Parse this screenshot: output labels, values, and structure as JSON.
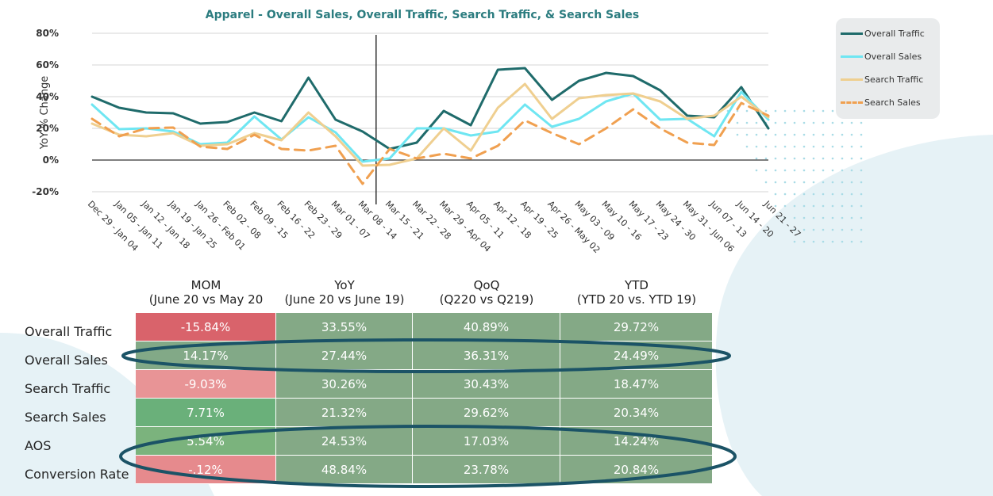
{
  "chart_data": {
    "type": "line",
    "title": "Apparel - Overall Sales, Overall Traffic, Search Traffic, & Search Sales",
    "ylabel": "YoY % Change",
    "ylim": [
      -20,
      80
    ],
    "yticks": [
      "80%",
      "60%",
      "40%",
      "20%",
      "0%",
      "-20%"
    ],
    "grid": true,
    "legend_position": "top-right",
    "categories": [
      "Dec 29 - Jan 04",
      "Jan 05 - Jan 11",
      "Jan 12 - Jan 18",
      "Jan 19 - Jan 25",
      "Jan 26 - Feb 01",
      "Feb 02 - 08",
      "Feb 09 - 15",
      "Feb 16 - 22",
      "Feb 23 - 29",
      "Mar 01 - 07",
      "Mar 08 - 14",
      "Mar 15 - 21",
      "Mar 22 - 28",
      "Mar 29 - Apr 04",
      "Apr 05 - 11",
      "Apr 12 - 18",
      "Apr 19 - 25",
      "Apr 26 - May 02",
      "May 03 - 09",
      "May 10 - 16",
      "May 17 - 23",
      "May 24 - 30",
      "May 31 - Jun 06",
      "Jun 07 - 13",
      "Jun 14 - 20",
      "Jun 21 - 27"
    ],
    "series": [
      {
        "name": "Overall Traffic",
        "color": "#1f6b6b",
        "style": "solid",
        "values": [
          40,
          33,
          30,
          29.5,
          23,
          24,
          30,
          24.5,
          52,
          25.5,
          18,
          7,
          11,
          31,
          22,
          57,
          58,
          38,
          50,
          55,
          53,
          44,
          28,
          27,
          46,
          20
        ]
      },
      {
        "name": "Overall Sales",
        "color": "#6fe6f2",
        "style": "solid",
        "values": [
          35,
          19.5,
          20,
          18,
          10,
          11,
          27.5,
          13,
          27,
          17.5,
          -1,
          1,
          20,
          20,
          15.5,
          18,
          35,
          21,
          26,
          37,
          42,
          25.5,
          26,
          15,
          43,
          25.5
        ]
      },
      {
        "name": "Search Traffic",
        "color": "#efcf90",
        "style": "solid",
        "values": [
          23,
          16,
          15,
          17,
          9,
          10,
          17,
          12.5,
          30,
          15,
          -3.5,
          -3,
          1,
          20,
          6,
          33,
          48,
          26,
          39,
          41,
          42,
          37,
          26,
          28,
          40,
          27
        ]
      },
      {
        "name": "Search Sales",
        "color": "#f0a050",
        "style": "dashed",
        "values": [
          26,
          15,
          20,
          20.5,
          8.5,
          7,
          16,
          7,
          6,
          9,
          -15,
          7,
          1,
          4,
          1,
          9,
          25,
          17,
          10,
          20,
          32,
          20,
          11,
          9.5,
          36,
          28
        ]
      }
    ],
    "vertical_marker_category": "Mar 08 - 14"
  },
  "table": {
    "columns": [
      {
        "title": "MOM",
        "subtitle": "(June 20 vs May 20"
      },
      {
        "title": "YoY",
        "subtitle": "(June 20 vs June 19)"
      },
      {
        "title": "QoQ",
        "subtitle": "(Q220 vs Q219)"
      },
      {
        "title": "YTD",
        "subtitle": "(YTD 20 vs. YTD 19)"
      }
    ],
    "rows": [
      {
        "label": "Overall Traffic",
        "values": [
          "-15.84%",
          "33.55%",
          "40.89%",
          "29.72%"
        ],
        "mom_color": "#d9636b"
      },
      {
        "label": "Overall Sales",
        "values": [
          "14.17%",
          "27.44%",
          "36.31%",
          "24.49%"
        ],
        "mom_color": "#82a987"
      },
      {
        "label": "Search Traffic",
        "values": [
          "-9.03%",
          "30.26%",
          "30.43%",
          "18.47%"
        ],
        "mom_color": "#e89496"
      },
      {
        "label": "Search Sales",
        "values": [
          "7.71%",
          "21.32%",
          "29.62%",
          "20.34%"
        ],
        "mom_color": "#6ab07a"
      },
      {
        "label": "AOS",
        "values": [
          "5.54%",
          "24.53%",
          "17.03%",
          "14.24%"
        ],
        "mom_color": "#7bb37d"
      },
      {
        "label": "Conversion Rate",
        "values": [
          "-.12%",
          "48.84%",
          "23.78%",
          "20.84%"
        ],
        "mom_color": "#e68a8d"
      }
    ],
    "default_color": "#84a986"
  }
}
